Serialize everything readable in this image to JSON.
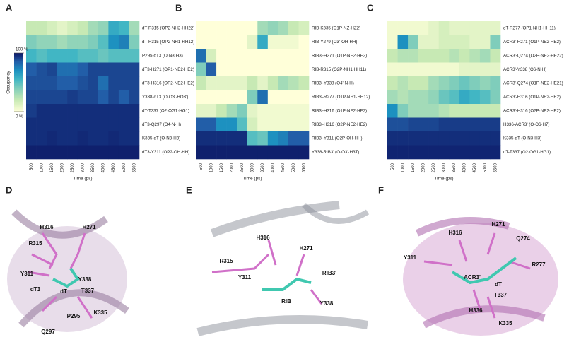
{
  "chart_data": [
    {
      "type": "heatmap",
      "panel": "A",
      "x_label": "Time (ps)",
      "colormap": "YlGnBu",
      "categories": [
        "500",
        "1000",
        "1500",
        "2000",
        "2500",
        "3000",
        "3500",
        "4000",
        "4500",
        "5000",
        "5500"
      ],
      "rows": [
        "dT-R315 (OP2·NH2·HH22)",
        "dT-R315 (OP2·NH1·HH12)",
        "P295-dT3 (O·N3·H3)",
        "dT3-H271 (OP1·NE2·HE2)",
        "dT3-H316 (OP2·NE2·HE2)",
        "Y338-dT3 (O·O3'·HO3')",
        "dT-T337 (O2·OG1·HG1)",
        "dT3-Q297 (O4·N·H)",
        "K335-dT (O·N3·H3)",
        "dT3-Y311 (OP2·OH·HH)"
      ],
      "values": [
        [
          20,
          20,
          15,
          10,
          15,
          20,
          30,
          35,
          60,
          55,
          30
        ],
        [
          40,
          35,
          35,
          30,
          35,
          35,
          40,
          50,
          70,
          75,
          40
        ],
        [
          55,
          50,
          55,
          55,
          55,
          50,
          50,
          45,
          50,
          50,
          50
        ],
        [
          85,
          88,
          90,
          80,
          80,
          85,
          90,
          90,
          90,
          90,
          90
        ],
        [
          88,
          88,
          88,
          85,
          85,
          88,
          90,
          80,
          90,
          90,
          90
        ],
        [
          90,
          90,
          90,
          90,
          92,
          90,
          90,
          85,
          90,
          85,
          90
        ],
        [
          92,
          95,
          95,
          95,
          95,
          95,
          95,
          95,
          95,
          95,
          95
        ],
        [
          95,
          95,
          95,
          95,
          95,
          95,
          95,
          95,
          95,
          95,
          95
        ],
        [
          95,
          95,
          96,
          95,
          95,
          96,
          95,
          95,
          96,
          95,
          95
        ],
        [
          98,
          98,
          98,
          98,
          98,
          98,
          98,
          98,
          98,
          98,
          98
        ]
      ],
      "colorbar": {
        "label": "Occupancy",
        "lim": [
          0,
          100
        ],
        "ticks": [
          {
            "value": 100,
            "label": "100 %"
          },
          {
            "value": 0,
            "label": "0 %"
          }
        ]
      }
    },
    {
      "type": "heatmap",
      "panel": "B",
      "x_label": "Time (ps)",
      "colormap": "YlGnBu",
      "categories": [
        "500",
        "1000",
        "1500",
        "2000",
        "2500",
        "3000",
        "3500",
        "4000",
        "4500",
        "5000",
        "5500"
      ],
      "rows": [
        "RIB-K335 (O1P·NZ·HZ2)",
        "RIB-Y279 (O3'·OH·HH)",
        "RIB3'-H271 (O1P·NE2·HE2)",
        "RIB-R315 (O2P·NH1·HH11)",
        "RIB3'-Y338 (O4'·N·H)",
        "RIB3'-R277 (O1P·NH1·HH12)",
        "RIB3'-H316 (O1P·NE2·HE2)",
        "RIB3'-H316 (O2P·NE2·HE2)",
        "RIB3'-Y311 (O2P·OH·HH)",
        "Y338-RIB3' (O·O3'·H3T)"
      ],
      "values": [
        [
          0,
          0,
          0,
          0,
          0,
          0,
          30,
          35,
          30,
          20,
          15
        ],
        [
          0,
          0,
          0,
          0,
          0,
          10,
          60,
          5,
          5,
          5,
          0
        ],
        [
          80,
          15,
          0,
          0,
          0,
          0,
          0,
          0,
          0,
          0,
          0
        ],
        [
          40,
          85,
          0,
          0,
          0,
          0,
          0,
          0,
          0,
          0,
          0
        ],
        [
          20,
          10,
          10,
          10,
          10,
          20,
          10,
          20,
          30,
          25,
          20
        ],
        [
          0,
          0,
          0,
          0,
          0,
          40,
          80,
          0,
          0,
          0,
          0
        ],
        [
          10,
          10,
          20,
          30,
          40,
          10,
          5,
          5,
          5,
          5,
          5
        ],
        [
          85,
          85,
          70,
          70,
          50,
          15,
          5,
          5,
          5,
          5,
          5
        ],
        [
          95,
          95,
          95,
          95,
          95,
          50,
          45,
          70,
          75,
          85,
          85
        ],
        [
          98,
          98,
          98,
          98,
          98,
          98,
          98,
          98,
          98,
          98,
          98
        ]
      ]
    },
    {
      "type": "heatmap",
      "panel": "C",
      "x_label": "Time (ps)",
      "colormap": "YlGnBu",
      "categories": [
        "500",
        "1000",
        "1500",
        "2000",
        "2500",
        "3000",
        "3500",
        "4000",
        "4500",
        "5000",
        "5500"
      ],
      "rows": [
        "dT-R277 (OP1·NH1·HH11)",
        "ACR3'-H271 (O1P·NE2·HE2)",
        "ACR3'-Q274 (O2P·NE2·HE22)",
        "ACR3'-Y338 (O6·N·H)",
        "ACR3'-Q274 (O1P·NE2·HE21)",
        "ACR3'-H316 (O1P·NE2·HE2)",
        "ACR3'-H316 (O2P·NE2·HE2)",
        "H336-ACR3' (O·O6·H7)",
        "K335-dT (O·N3·H3)",
        "dT-T337 (O2·OG1·HG1)"
      ],
      "values": [
        [
          5,
          5,
          5,
          5,
          10,
          15,
          10,
          10,
          10,
          10,
          10
        ],
        [
          5,
          70,
          40,
          10,
          10,
          15,
          15,
          15,
          10,
          10,
          40
        ],
        [
          20,
          25,
          25,
          20,
          20,
          20,
          25,
          20,
          25,
          30,
          20
        ],
        [
          5,
          5,
          5,
          5,
          5,
          5,
          5,
          10,
          10,
          10,
          10
        ],
        [
          20,
          25,
          20,
          20,
          30,
          35,
          40,
          45,
          40,
          35,
          40
        ],
        [
          30,
          25,
          30,
          30,
          35,
          45,
          50,
          60,
          55,
          50,
          40
        ],
        [
          70,
          40,
          30,
          30,
          30,
          25,
          20,
          20,
          20,
          20,
          20
        ],
        [
          88,
          88,
          90,
          90,
          90,
          92,
          92,
          92,
          92,
          92,
          92
        ],
        [
          95,
          95,
          95,
          95,
          95,
          95,
          95,
          95,
          95,
          95,
          95
        ],
        [
          97,
          97,
          97,
          97,
          97,
          97,
          97,
          97,
          97,
          97,
          97
        ]
      ]
    }
  ],
  "structure_panels": [
    {
      "panel": "D",
      "residues": [
        "H316",
        "H271",
        "R315",
        "Y311",
        "dT3",
        "dT",
        "Y338",
        "T337",
        "P295",
        "K335",
        "Q297"
      ]
    },
    {
      "panel": "E",
      "residues": [
        "H316",
        "H271",
        "R315",
        "Y311",
        "RIB3'",
        "RIB",
        "Y338"
      ]
    },
    {
      "panel": "F",
      "residues": [
        "H316",
        "H271",
        "Q274",
        "R277",
        "Y311",
        "ACR3'",
        "dT",
        "T337",
        "H336",
        "K335"
      ]
    }
  ]
}
